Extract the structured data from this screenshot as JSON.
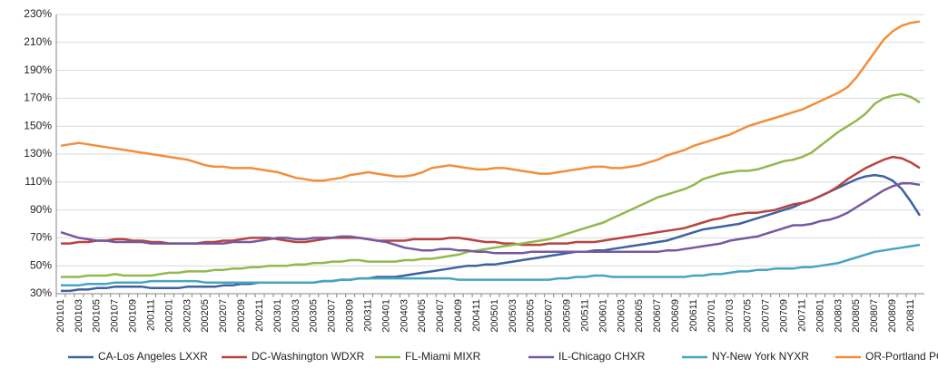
{
  "chart_data": {
    "type": "line",
    "categories": [
      "200101",
      null,
      "200103",
      null,
      "200105",
      null,
      "200107",
      null,
      "200109",
      null,
      "200111",
      null,
      "200201",
      null,
      "200203",
      null,
      "200205",
      null,
      "200207",
      null,
      "200209",
      null,
      "200211",
      null,
      "200301",
      null,
      "200303",
      null,
      "200305",
      null,
      "200307",
      null,
      "200309",
      null,
      "200311",
      null,
      "200401",
      null,
      "200403",
      null,
      "200405",
      null,
      "200407",
      null,
      "200409",
      null,
      "200411",
      null,
      "200501",
      null,
      "200503",
      null,
      "200505",
      null,
      "200507",
      null,
      "200509",
      null,
      "200511",
      null,
      "200601",
      null,
      "200603",
      null,
      "200605",
      null,
      "200607",
      null,
      "200609",
      null,
      "200611",
      null,
      "200701",
      null,
      "200703",
      null,
      "200705",
      null,
      "200707",
      null,
      "200709",
      null,
      "200711",
      null,
      "200801",
      null,
      "200803",
      null,
      "200805",
      null,
      "200807",
      null,
      "200809",
      null,
      "200811",
      null
    ],
    "series": [
      {
        "name": "CA-Los Angeles LXXR",
        "color": "#3d62a0",
        "values": [
          32,
          32,
          33,
          33,
          34,
          34,
          35,
          35,
          35,
          35,
          34,
          34,
          34,
          34,
          35,
          35,
          35,
          35,
          36,
          36,
          37,
          37,
          38,
          38,
          38,
          38,
          38,
          38,
          38,
          39,
          39,
          40,
          40,
          41,
          41,
          42,
          42,
          42,
          43,
          44,
          45,
          46,
          47,
          48,
          49,
          50,
          50,
          51,
          51,
          52,
          53,
          54,
          55,
          56,
          57,
          58,
          59,
          60,
          60,
          61,
          61,
          62,
          63,
          64,
          65,
          66,
          67,
          68,
          70,
          72,
          74,
          76,
          77,
          78,
          79,
          80,
          82,
          84,
          86,
          88,
          90,
          92,
          95,
          97,
          100,
          103,
          106,
          109,
          112,
          114,
          115,
          114,
          111,
          105,
          96,
          86
        ]
      },
      {
        "name": "DC-Washington WDXR",
        "color": "#b8433f",
        "values": [
          66,
          66,
          67,
          67,
          68,
          68,
          69,
          69,
          68,
          68,
          67,
          67,
          66,
          66,
          66,
          66,
          67,
          67,
          68,
          68,
          69,
          70,
          70,
          70,
          69,
          68,
          67,
          67,
          68,
          69,
          70,
          70,
          70,
          70,
          69,
          68,
          68,
          68,
          68,
          69,
          69,
          69,
          69,
          70,
          70,
          69,
          68,
          67,
          67,
          66,
          66,
          65,
          65,
          65,
          66,
          66,
          66,
          67,
          67,
          67,
          68,
          69,
          70,
          71,
          72,
          73,
          74,
          75,
          76,
          77,
          79,
          81,
          83,
          84,
          86,
          87,
          88,
          88,
          89,
          90,
          92,
          94,
          95,
          97,
          100,
          103,
          107,
          112,
          116,
          120,
          123,
          126,
          128,
          127,
          124,
          120
        ]
      },
      {
        "name": "FL-Miami MIXR",
        "color": "#93b84e",
        "values": [
          42,
          42,
          42,
          43,
          43,
          43,
          44,
          43,
          43,
          43,
          43,
          44,
          45,
          45,
          46,
          46,
          46,
          47,
          47,
          48,
          48,
          49,
          49,
          50,
          50,
          50,
          51,
          51,
          52,
          52,
          53,
          53,
          54,
          54,
          53,
          53,
          53,
          53,
          54,
          54,
          55,
          55,
          56,
          57,
          58,
          60,
          61,
          62,
          63,
          64,
          65,
          66,
          67,
          68,
          69,
          71,
          73,
          75,
          77,
          79,
          81,
          84,
          87,
          90,
          93,
          96,
          99,
          101,
          103,
          105,
          108,
          112,
          114,
          116,
          117,
          118,
          118,
          119,
          121,
          123,
          125,
          126,
          128,
          131,
          136,
          141,
          146,
          150,
          154,
          159,
          166,
          170,
          172,
          173,
          171,
          167
        ]
      },
      {
        "name": "IL-Chicago CHXR",
        "color": "#7658a0",
        "values": [
          74,
          72,
          70,
          69,
          68,
          68,
          67,
          67,
          67,
          67,
          66,
          66,
          66,
          66,
          66,
          66,
          66,
          66,
          66,
          67,
          67,
          67,
          68,
          69,
          70,
          70,
          69,
          69,
          70,
          70,
          70,
          71,
          71,
          70,
          69,
          68,
          67,
          65,
          63,
          62,
          61,
          61,
          62,
          62,
          61,
          61,
          60,
          60,
          59,
          59,
          59,
          59,
          60,
          60,
          60,
          60,
          60,
          60,
          60,
          60,
          60,
          60,
          60,
          60,
          60,
          60,
          60,
          61,
          61,
          62,
          63,
          64,
          65,
          66,
          68,
          69,
          70,
          71,
          73,
          75,
          77,
          79,
          79,
          80,
          82,
          83,
          85,
          88,
          92,
          96,
          100,
          104,
          107,
          109,
          109,
          108
        ]
      },
      {
        "name": "NY-New York NYXR",
        "color": "#45a5c0",
        "values": [
          36,
          36,
          36,
          37,
          37,
          37,
          38,
          38,
          38,
          38,
          39,
          39,
          39,
          39,
          39,
          39,
          38,
          38,
          38,
          38,
          38,
          38,
          38,
          38,
          38,
          38,
          38,
          38,
          38,
          39,
          39,
          40,
          40,
          41,
          41,
          41,
          41,
          41,
          41,
          41,
          41,
          41,
          41,
          41,
          40,
          40,
          40,
          40,
          40,
          40,
          40,
          40,
          40,
          40,
          40,
          41,
          41,
          42,
          42,
          43,
          43,
          42,
          42,
          42,
          42,
          42,
          42,
          42,
          42,
          42,
          43,
          43,
          44,
          44,
          45,
          46,
          46,
          47,
          47,
          48,
          48,
          48,
          49,
          49,
          50,
          51,
          52,
          54,
          56,
          58,
          60,
          61,
          62,
          63,
          64,
          65
        ]
      },
      {
        "name": "OR-Portland POXR",
        "color": "#f28e3a",
        "values": [
          136,
          137,
          138,
          137,
          136,
          135,
          134,
          133,
          132,
          131,
          130,
          129,
          128,
          127,
          126,
          124,
          122,
          121,
          121,
          120,
          120,
          120,
          119,
          118,
          117,
          115,
          113,
          112,
          111,
          111,
          112,
          113,
          115,
          116,
          117,
          116,
          115,
          114,
          114,
          115,
          117,
          120,
          121,
          122,
          121,
          120,
          119,
          119,
          120,
          120,
          119,
          118,
          117,
          116,
          116,
          117,
          118,
          119,
          120,
          121,
          121,
          120,
          120,
          121,
          122,
          124,
          126,
          129,
          131,
          133,
          136,
          138,
          140,
          142,
          144,
          147,
          150,
          152,
          154,
          156,
          158,
          160,
          162,
          165,
          168,
          171,
          174,
          178,
          185,
          194,
          203,
          212,
          218,
          222,
          224,
          225
        ]
      }
    ],
    "ylim": [
      30,
      230
    ],
    "yticks": [
      {
        "value": 30,
        "label": "30%"
      },
      {
        "value": 50,
        "label": "50%"
      },
      {
        "value": 70,
        "label": "70%"
      },
      {
        "value": 90,
        "label": "90%"
      },
      {
        "value": 110,
        "label": "110%"
      },
      {
        "value": 130,
        "label": "130%"
      },
      {
        "value": 150,
        "label": "150%"
      },
      {
        "value": 170,
        "label": "170%"
      },
      {
        "value": 190,
        "label": "190%"
      },
      {
        "value": 210,
        "label": "210%"
      },
      {
        "value": 230,
        "label": "230%"
      }
    ],
    "grid": true,
    "legend": "bottom"
  }
}
